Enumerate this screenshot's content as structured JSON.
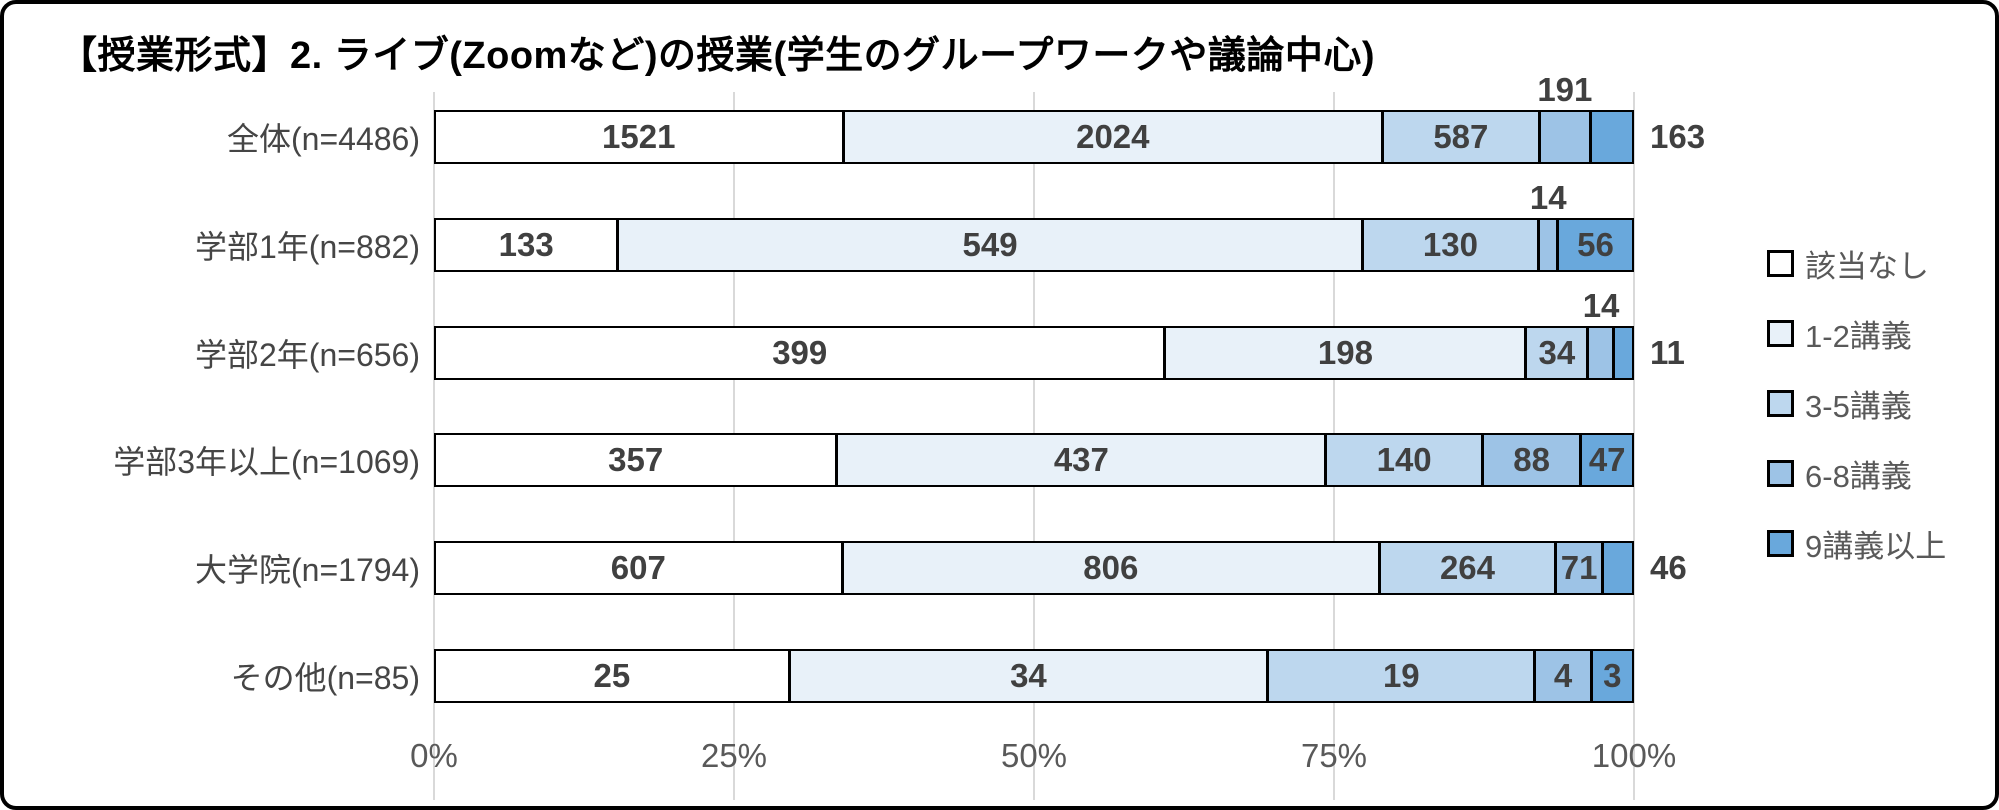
{
  "chart_data": {
    "type": "bar",
    "stacked": true,
    "orientation": "horizontal",
    "normalized": "each row scaled to 100% of its n",
    "title": "【授業形式】2. ライブ(Zoomなど)の授業(学生のグループワークや議論中心)",
    "categories": [
      "全体(n=4486)",
      "学部1年(n=882)",
      "学部2年(n=656)",
      "学部3年以上(n=1069)",
      "大学院(n=1794)",
      "その他(n=85)"
    ],
    "n": [
      4486,
      882,
      656,
      1069,
      1794,
      85
    ],
    "series": [
      {
        "name": "該当なし",
        "color": "#ffffff",
        "values": [
          1521,
          133,
          399,
          357,
          607,
          25
        ]
      },
      {
        "name": "1-2講義",
        "color": "#e8f1f9",
        "values": [
          2024,
          549,
          198,
          437,
          806,
          34
        ]
      },
      {
        "name": "3-5講義",
        "color": "#bdd7ee",
        "values": [
          587,
          130,
          34,
          140,
          264,
          19
        ]
      },
      {
        "name": "6-8講義",
        "color": "#9dc3e6",
        "values": [
          191,
          14,
          14,
          88,
          71,
          4
        ]
      },
      {
        "name": "9講義以上",
        "color": "#69a8dc",
        "values": [
          163,
          56,
          11,
          47,
          46,
          3
        ]
      }
    ],
    "label_positions": [
      [
        "inside",
        "inside",
        "inside",
        "above",
        "right"
      ],
      [
        "inside",
        "inside",
        "inside",
        "above",
        "inside"
      ],
      [
        "inside",
        "inside",
        "inside",
        "above",
        "right"
      ],
      [
        "inside",
        "inside",
        "inside",
        "inside",
        "inside"
      ],
      [
        "inside",
        "inside",
        "inside",
        "inside",
        "right"
      ],
      [
        "inside",
        "inside",
        "inside",
        "inside",
        "inside"
      ]
    ],
    "xlabel": "",
    "ylabel": "",
    "xlim": [
      0,
      100
    ],
    "xticks": [
      "0%",
      "25%",
      "50%",
      "75%",
      "100%"
    ],
    "grid": true,
    "legend_position": "right",
    "colors": {
      "value_label": "#404040",
      "category_label": "#454545",
      "axis_label": "#595959",
      "gridline": "#d9d9d9",
      "bar_border": "#000000",
      "frame_border": "#000000",
      "background": "#ffffff"
    }
  }
}
